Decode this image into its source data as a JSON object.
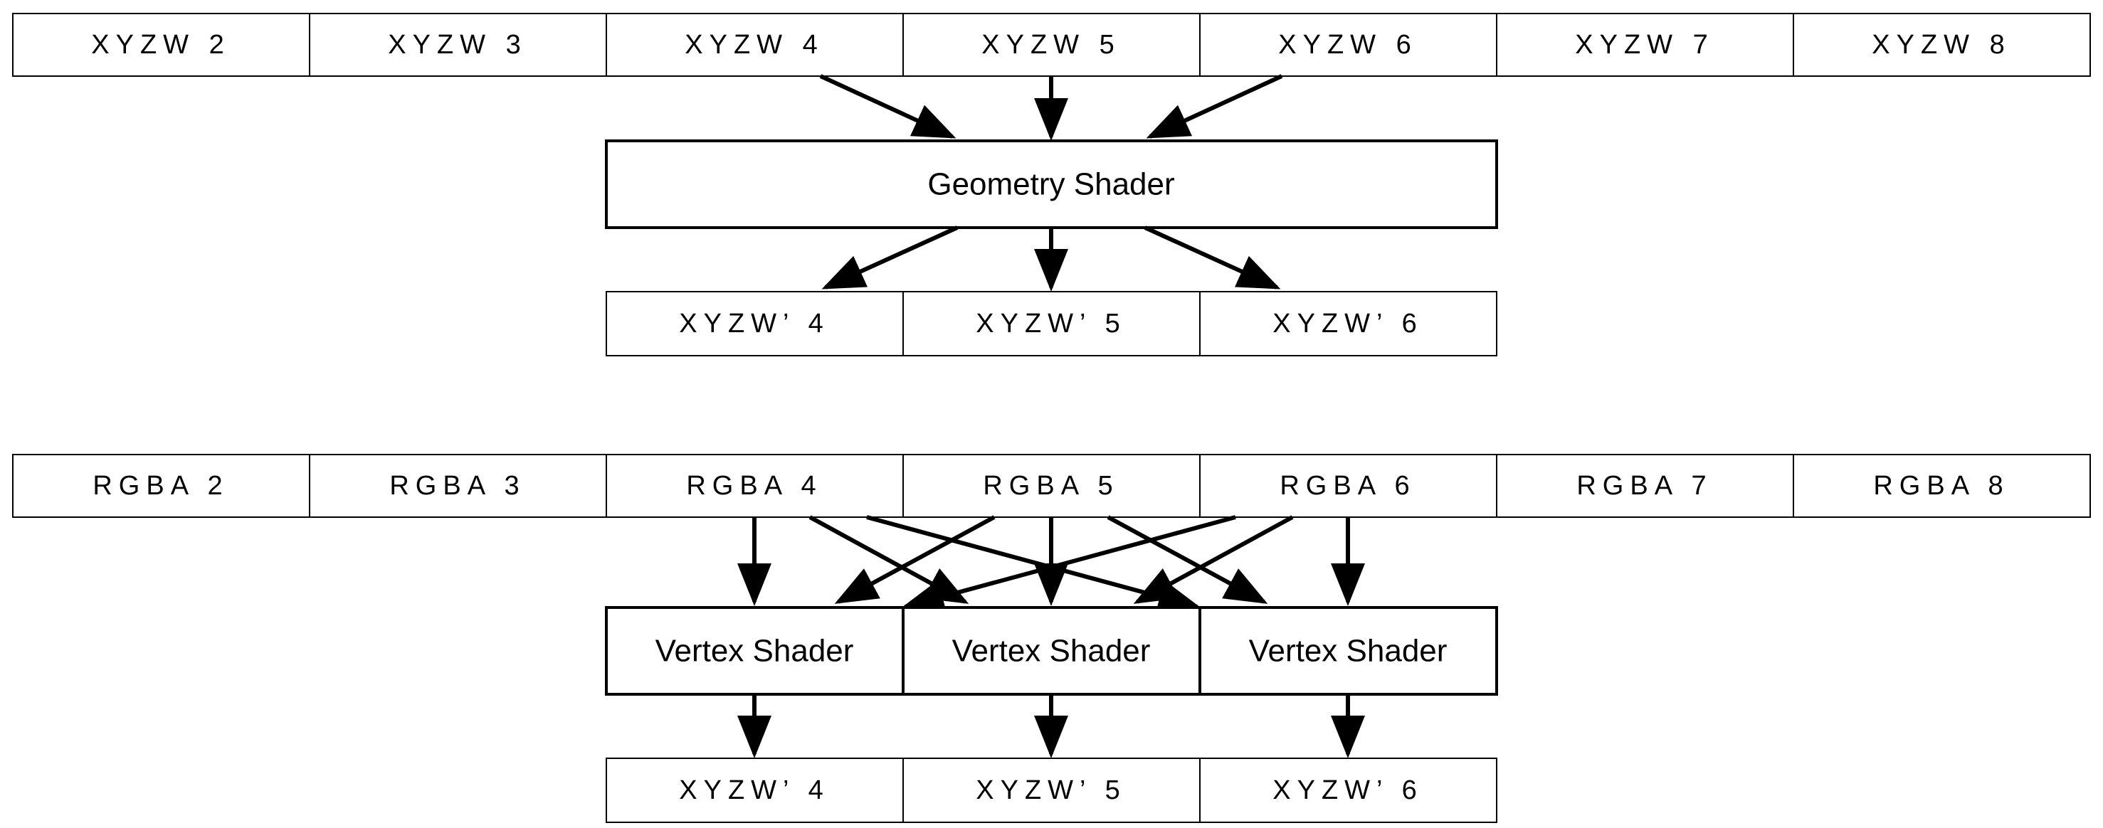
{
  "position_row": [
    "XYZW 2",
    "XYZW 3",
    "XYZW 4",
    "XYZW 5",
    "XYZW 6",
    "XYZW 7",
    "XYZW 8"
  ],
  "geometry_shader": {
    "label": "Geometry Shader"
  },
  "geometry_output": [
    "XYZW’ 4",
    "XYZW’ 5",
    "XYZW’ 6"
  ],
  "color_row": [
    "RGBA 2",
    "RGBA 3",
    "RGBA 4",
    "RGBA 5",
    "RGBA 6",
    "RGBA 7",
    "RGBA 8"
  ],
  "vertex_shaders": [
    "Vertex Shader",
    "Vertex Shader",
    "Vertex Shader"
  ],
  "vertex_output": [
    "XYZW’ 4",
    "XYZW’ 5",
    "XYZW’ 6"
  ]
}
